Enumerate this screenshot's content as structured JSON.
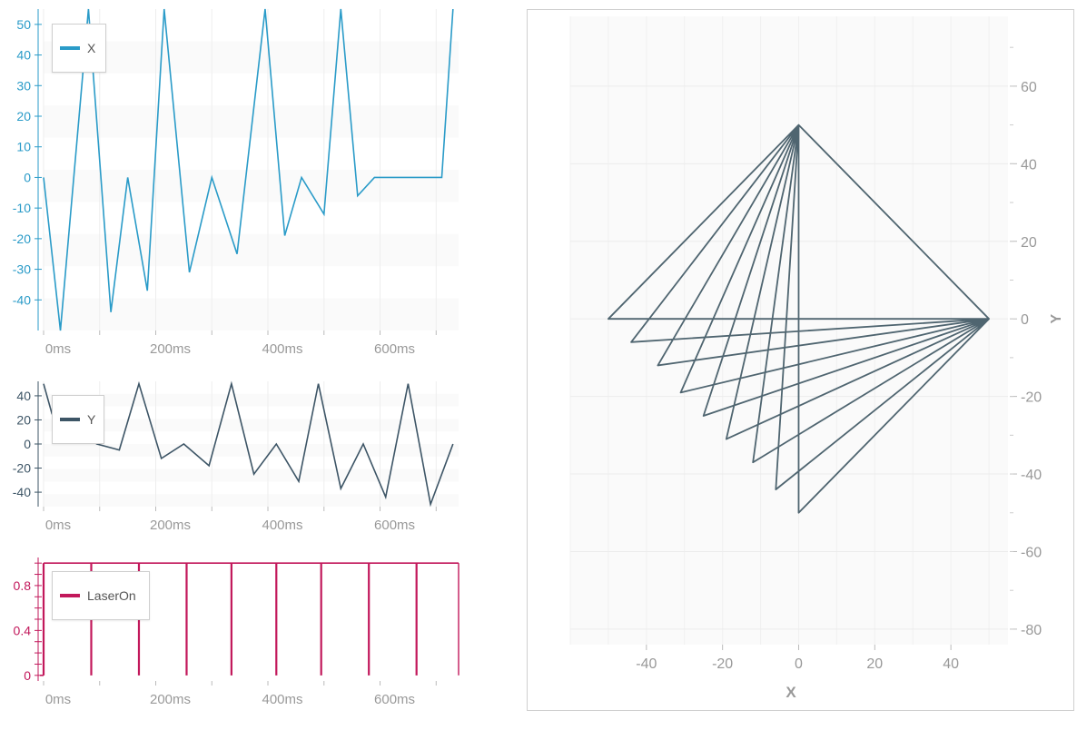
{
  "colors": {
    "x_series": "#2a9bc8",
    "y_series": "#3d5566",
    "laser_series": "#c2185b",
    "xy_lines": "#4f6570",
    "grid": "#eeeeee",
    "tick_text": "#999999"
  },
  "chart_data": [
    {
      "type": "line",
      "series": [
        {
          "name": "X",
          "x_ms": [
            0,
            30,
            80,
            120,
            150,
            185,
            215,
            260,
            300,
            345,
            395,
            430,
            460,
            500,
            530,
            560,
            590,
            630,
            670,
            710,
            730
          ],
          "values": [
            0,
            -50,
            55,
            -44,
            0,
            -37,
            55,
            -31,
            0,
            -25,
            55,
            -19,
            0,
            -12,
            55,
            -6,
            0,
            0,
            0,
            0,
            55
          ]
        }
      ],
      "y_ticks": [
        "50",
        "40",
        "30",
        "20",
        "10",
        "0",
        "-10",
        "-20",
        "-30",
        "-40"
      ],
      "ylim": [
        -50,
        55
      ],
      "x_ticks": [
        "0ms",
        "200ms",
        "400ms",
        "600ms"
      ],
      "xlim": [
        0,
        740
      ],
      "legend": "top-left"
    },
    {
      "type": "line",
      "series": [
        {
          "name": "Y",
          "x_ms": [
            0,
            15,
            95,
            135,
            170,
            210,
            250,
            295,
            335,
            375,
            415,
            455,
            490,
            530,
            570,
            610,
            650,
            690,
            730
          ],
          "values": [
            50,
            25,
            0,
            -5,
            50,
            -12,
            0,
            -18,
            50,
            -25,
            0,
            -31,
            50,
            -37,
            0,
            -44,
            50,
            -50,
            0
          ]
        }
      ],
      "y_ticks": [
        "40",
        "20",
        "0",
        "-20",
        "-40"
      ],
      "ylim": [
        -52,
        52
      ],
      "x_ticks": [
        "0ms",
        "200ms",
        "400ms",
        "600ms"
      ],
      "xlim": [
        0,
        740
      ],
      "legend": "top-left"
    },
    {
      "type": "line",
      "series": [
        {
          "name": "LaserOn",
          "pulses_ms": [
            0,
            85,
            170,
            255,
            335,
            415,
            495,
            580,
            665
          ],
          "high_until_ms": 740
        }
      ],
      "y_ticks": [
        "0.8",
        "0.4",
        "0"
      ],
      "ylim": [
        -0.05,
        1.05
      ],
      "x_ticks": [
        "0ms",
        "200ms",
        "400ms",
        "600ms"
      ],
      "xlim": [
        0,
        740
      ],
      "legend": "top-left"
    },
    {
      "type": "line",
      "xlabel": "X",
      "ylabel": "Y",
      "x_ticks": [
        "-40",
        "-20",
        "0",
        "20",
        "40"
      ],
      "y_ticks": [
        "60",
        "40",
        "20",
        "0",
        "-20",
        "-40",
        "-60",
        "-80"
      ],
      "xlim": [
        -60,
        55
      ],
      "ylim": [
        -84,
        78
      ],
      "axis_position": "right",
      "series": [
        {
          "name": "",
          "points": [
            [
              0,
              50
            ],
            [
              -50,
              0
            ],
            [
              50,
              0
            ],
            [
              0,
              50
            ],
            [
              -44,
              -6
            ],
            [
              50,
              0
            ],
            [
              0,
              50
            ],
            [
              -37,
              -12
            ],
            [
              50,
              0
            ],
            [
              0,
              50
            ],
            [
              -31,
              -19
            ],
            [
              50,
              0
            ],
            [
              0,
              50
            ],
            [
              -25,
              -25
            ],
            [
              50,
              0
            ],
            [
              0,
              50
            ],
            [
              -19,
              -31
            ],
            [
              50,
              0
            ],
            [
              0,
              50
            ],
            [
              -12,
              -37
            ],
            [
              50,
              0
            ],
            [
              0,
              50
            ],
            [
              -6,
              -44
            ],
            [
              50,
              0
            ],
            [
              0,
              50
            ],
            [
              0,
              -50
            ],
            [
              50,
              0
            ]
          ]
        }
      ]
    }
  ]
}
